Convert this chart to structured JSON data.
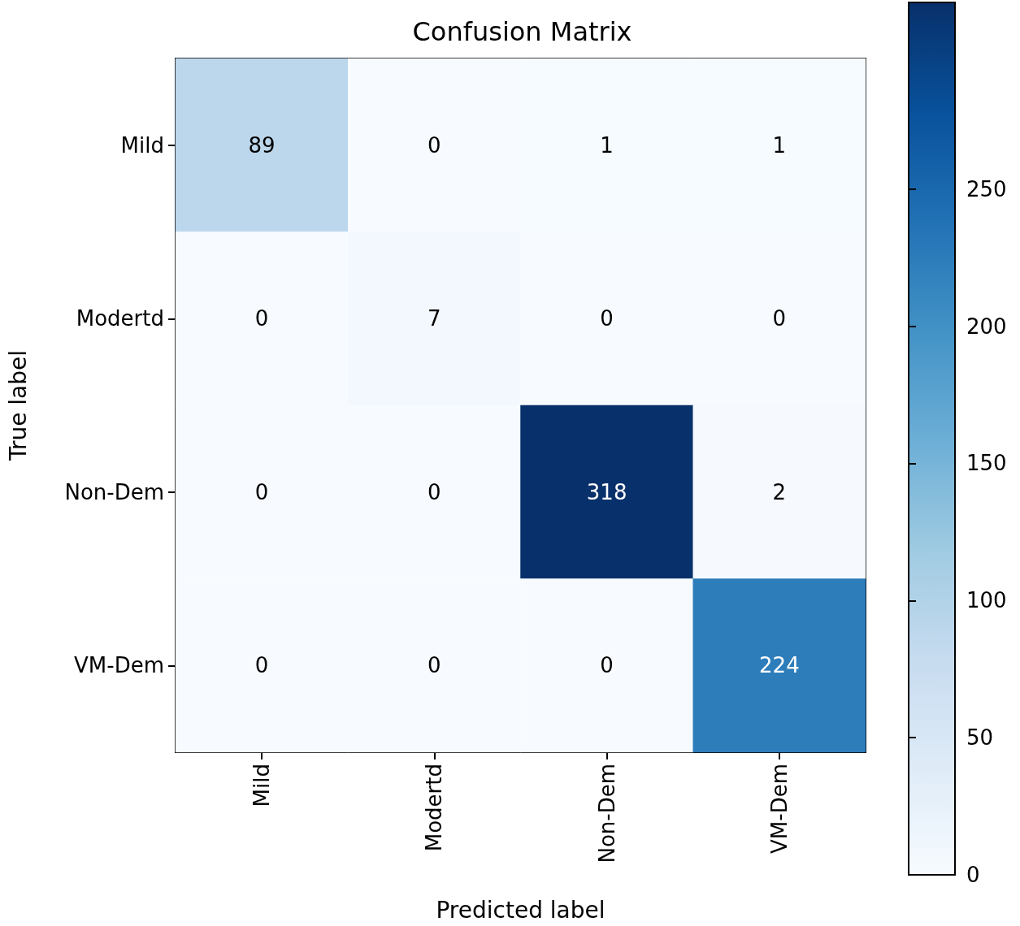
{
  "chart_data": {
    "type": "heatmap",
    "title": "Confusion Matrix",
    "xlabel": "Predicted label",
    "ylabel": "True label",
    "categories": [
      "Mild",
      "Modertd",
      "Non-Dem",
      "VM-Dem"
    ],
    "y_categories": [
      "Mild",
      "Modertd",
      "Non-Dem",
      "VM-Dem"
    ],
    "cells": [
      [
        89,
        0,
        1,
        1
      ],
      [
        0,
        7,
        0,
        0
      ],
      [
        0,
        0,
        318,
        2
      ],
      [
        0,
        0,
        0,
        224
      ]
    ],
    "data_labels": true,
    "clim": [
      0,
      318
    ],
    "cticks": [
      0,
      50,
      100,
      150,
      200,
      250
    ]
  }
}
